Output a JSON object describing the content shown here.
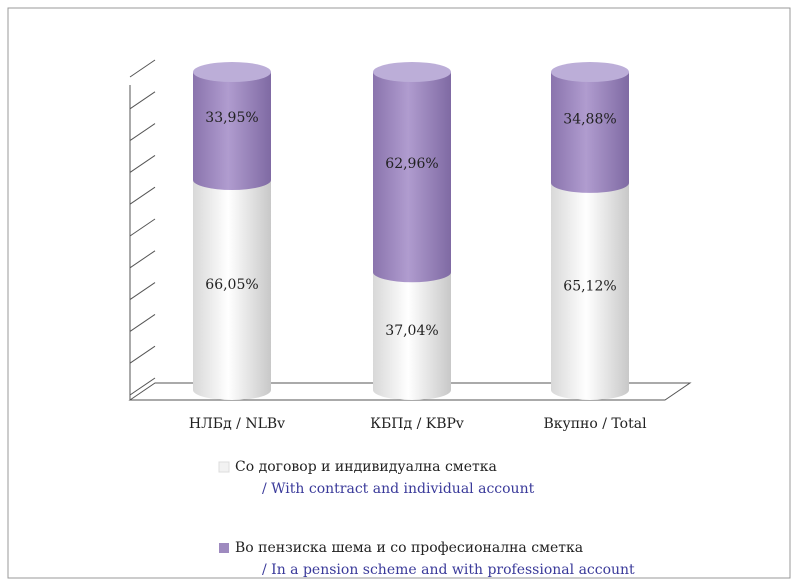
{
  "chart_data": {
    "type": "stacked-cylinder",
    "categories": [
      "НЛБд / NLBv",
      "КБПд  / KBPv",
      "Вкупно  / Total"
    ],
    "series": [
      {
        "name": "Со договор и индивидуална сметка",
        "name_en": "/ With contract and individual account",
        "color": "#f2f2f2",
        "values": [
          66.05,
          37.04,
          65.12
        ],
        "value_labels": [
          "66,05%",
          "37,04%",
          "65,12%"
        ]
      },
      {
        "name": "Во пензиска шема и со професионална сметка",
        "name_en": "/ In a pension scheme and with professional account",
        "color": "#9e8abf",
        "values": [
          33.95,
          62.96,
          34.88
        ],
        "value_labels": [
          "33,95%",
          "62,96%",
          "34,88%"
        ]
      }
    ],
    "ylim": [
      0,
      100
    ],
    "yticks": [
      0,
      10,
      20,
      30,
      40,
      50,
      60,
      70,
      80,
      90,
      100
    ],
    "grid": true
  }
}
